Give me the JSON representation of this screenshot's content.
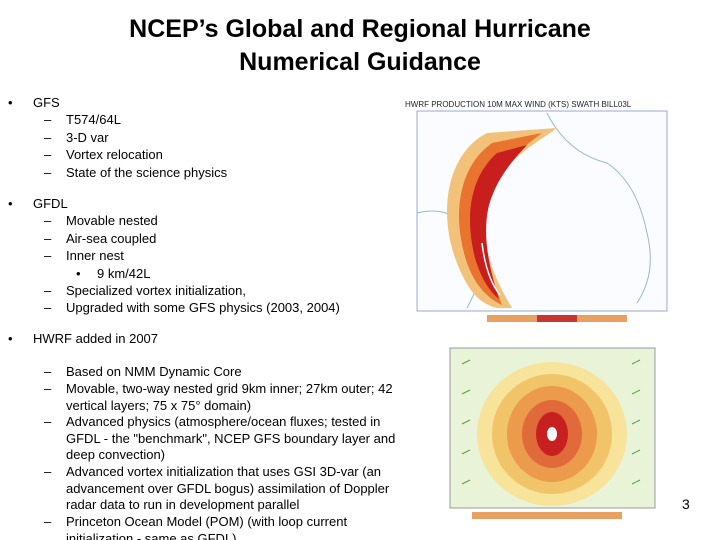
{
  "title": [
    "NCEP’s Global and Regional Hurricane",
    "Numerical Guidance"
  ],
  "bullets": [
    {
      "text": "GFS",
      "items": [
        {
          "text": "T574/64L"
        },
        {
          "text": "3-D var"
        },
        {
          "text": "Vortex relocation"
        },
        {
          "text": "State of the science physics"
        }
      ]
    },
    {
      "text": "GFDL",
      "items": [
        {
          "text": "Movable nested"
        },
        {
          "text": "Air-sea coupled"
        },
        {
          "text": "Inner nest",
          "items": [
            "9 km/42L"
          ]
        },
        {
          "text": "Specialized vortex initialization,"
        },
        {
          "text": "Upgraded with some GFS physics (2003, 2004)"
        }
      ]
    },
    {
      "text": "HWRF added in 2007",
      "items": [
        {
          "text": "Based on NMM Dynamic Core"
        },
        {
          "text": "Movable, two-way nested grid 9km inner; 27km outer; 42 vertical layers; 75 x 75° domain)"
        },
        {
          "text": "Advanced physics (atmosphere/ocean fluxes; tested in GFDL - the \"benchmark\", NCEP GFS boundary layer and deep convection)"
        },
        {
          "text": "Advanced vortex initialization that uses GSI 3D-var (an advancement over GFDL bogus) assimilation of Doppler radar data to run in development parallel"
        },
        {
          "text": "Princeton Ocean Model (POM) (with loop current initialization - same as GFDL)"
        }
      ]
    }
  ],
  "map_title": "HWRF PRODUCTION 10M MAX WIND (KTS) SWATH BILL03L",
  "page_number": "3"
}
